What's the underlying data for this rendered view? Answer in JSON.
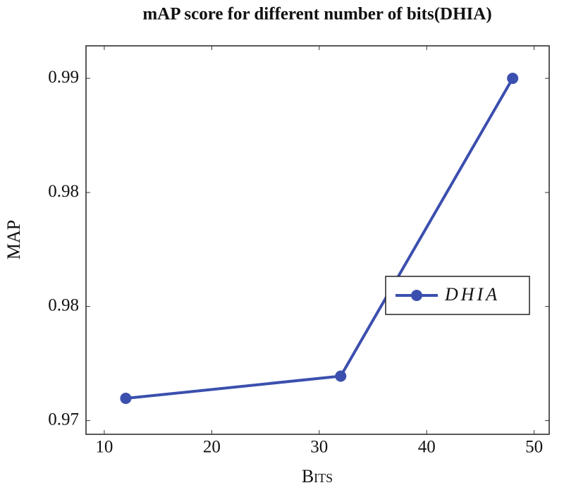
{
  "chart_data": {
    "type": "line",
    "title": "mAP score for different number of bits(DHIA)",
    "xlabel": "Bits",
    "ylabel": "MAP",
    "x": [
      12,
      32,
      48
    ],
    "series": [
      {
        "name": "DHIA",
        "color": "#3b4fae",
        "values": [
          0.9713,
          0.9726,
          0.99
        ]
      }
    ],
    "xlim": [
      8.3,
      51.4
    ],
    "xticks": [
      10,
      20,
      30,
      40,
      50
    ],
    "ylim": [
      0.9692,
      0.9919
    ],
    "yticks": [
      0.97,
      {
        "value": 0.97667,
        "label": "0.98"
      },
      {
        "value": 0.98333,
        "label": "0.98"
      },
      0.99
    ],
    "legend": "right"
  }
}
